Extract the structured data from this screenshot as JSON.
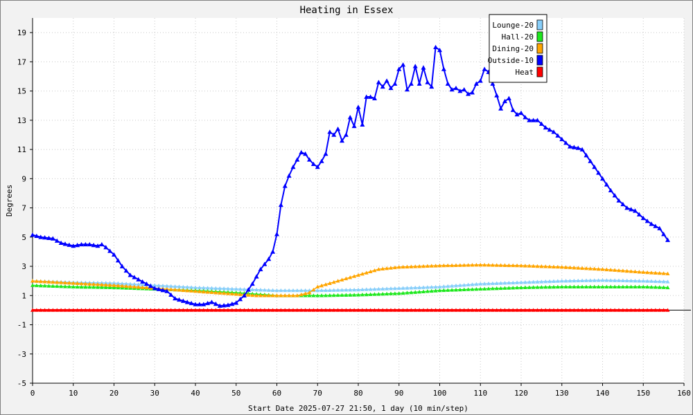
{
  "chart_data": {
    "type": "line",
    "title": "Heating in Essex",
    "xlabel": "Start Date 2025-07-27 21:50, 1 day (10 min/step)",
    "ylabel": "Degrees",
    "xlim": [
      0,
      160
    ],
    "ylim": [
      -5,
      20
    ],
    "x_ticks": [
      0,
      10,
      20,
      30,
      40,
      50,
      60,
      70,
      80,
      90,
      100,
      110,
      120,
      130,
      140,
      150,
      160
    ],
    "y_ticks": [
      -5,
      -3,
      -1,
      1,
      3,
      5,
      7,
      9,
      11,
      13,
      15,
      17,
      19
    ],
    "grid": true,
    "legend_position": "top-right",
    "series": [
      {
        "name": "Lounge-20",
        "color": "#87cefa",
        "points": [
          [
            0,
            2.0
          ],
          [
            10,
            1.9
          ],
          [
            20,
            1.85
          ],
          [
            30,
            1.7
          ],
          [
            40,
            1.55
          ],
          [
            50,
            1.45
          ],
          [
            55,
            1.4
          ],
          [
            60,
            1.35
          ],
          [
            70,
            1.35
          ],
          [
            80,
            1.4
          ],
          [
            90,
            1.5
          ],
          [
            100,
            1.6
          ],
          [
            110,
            1.8
          ],
          [
            120,
            1.9
          ],
          [
            130,
            2.0
          ],
          [
            140,
            2.05
          ],
          [
            150,
            2.0
          ],
          [
            156,
            1.95
          ]
        ]
      },
      {
        "name": "Hall-20",
        "color": "#1ee81e",
        "points": [
          [
            0,
            1.7
          ],
          [
            10,
            1.6
          ],
          [
            20,
            1.55
          ],
          [
            30,
            1.45
          ],
          [
            40,
            1.35
          ],
          [
            50,
            1.2
          ],
          [
            55,
            1.1
          ],
          [
            60,
            1.0
          ],
          [
            70,
            1.0
          ],
          [
            80,
            1.05
          ],
          [
            90,
            1.15
          ],
          [
            100,
            1.35
          ],
          [
            110,
            1.45
          ],
          [
            120,
            1.55
          ],
          [
            130,
            1.6
          ],
          [
            140,
            1.6
          ],
          [
            150,
            1.6
          ],
          [
            156,
            1.55
          ]
        ]
      },
      {
        "name": "Dining-20",
        "color": "#ffa500",
        "points": [
          [
            0,
            2.0
          ],
          [
            10,
            1.85
          ],
          [
            20,
            1.7
          ],
          [
            30,
            1.5
          ],
          [
            40,
            1.3
          ],
          [
            50,
            1.1
          ],
          [
            55,
            1.0
          ],
          [
            60,
            1.0
          ],
          [
            65,
            1.0
          ],
          [
            68,
            1.2
          ],
          [
            70,
            1.6
          ],
          [
            75,
            2.0
          ],
          [
            80,
            2.4
          ],
          [
            85,
            2.8
          ],
          [
            90,
            2.95
          ],
          [
            100,
            3.05
          ],
          [
            110,
            3.1
          ],
          [
            120,
            3.05
          ],
          [
            130,
            2.95
          ],
          [
            140,
            2.8
          ],
          [
            150,
            2.6
          ],
          [
            156,
            2.5
          ]
        ]
      },
      {
        "name": "Outside-10",
        "color": "#0000ff",
        "points": [
          [
            0,
            5.15
          ],
          [
            2,
            5.0
          ],
          [
            5,
            4.9
          ],
          [
            7,
            4.6
          ],
          [
            10,
            4.4
          ],
          [
            12,
            4.5
          ],
          [
            14,
            4.5
          ],
          [
            16,
            4.4
          ],
          [
            17,
            4.5
          ],
          [
            18,
            4.3
          ],
          [
            20,
            3.8
          ],
          [
            22,
            3.0
          ],
          [
            24,
            2.4
          ],
          [
            26,
            2.1
          ],
          [
            28,
            1.8
          ],
          [
            30,
            1.5
          ],
          [
            33,
            1.3
          ],
          [
            35,
            0.8
          ],
          [
            38,
            0.55
          ],
          [
            40,
            0.4
          ],
          [
            42,
            0.4
          ],
          [
            44,
            0.55
          ],
          [
            46,
            0.3
          ],
          [
            48,
            0.35
          ],
          [
            50,
            0.5
          ],
          [
            52,
            1.0
          ],
          [
            54,
            1.8
          ],
          [
            56,
            2.8
          ],
          [
            58,
            3.5
          ],
          [
            59,
            4.0
          ],
          [
            60,
            5.2
          ],
          [
            61,
            7.2
          ],
          [
            62,
            8.5
          ],
          [
            63,
            9.2
          ],
          [
            64,
            9.8
          ],
          [
            65,
            10.3
          ],
          [
            66,
            10.8
          ],
          [
            67,
            10.7
          ],
          [
            68,
            10.3
          ],
          [
            69,
            10.0
          ],
          [
            70,
            9.8
          ],
          [
            71,
            10.2
          ],
          [
            72,
            10.7
          ],
          [
            73,
            12.2
          ],
          [
            74,
            12.0
          ],
          [
            75,
            12.4
          ],
          [
            76,
            11.6
          ],
          [
            77,
            12.0
          ],
          [
            78,
            13.2
          ],
          [
            79,
            12.6
          ],
          [
            80,
            13.9
          ],
          [
            81,
            12.7
          ],
          [
            82,
            14.6
          ],
          [
            83,
            14.6
          ],
          [
            84,
            14.5
          ],
          [
            85,
            15.6
          ],
          [
            86,
            15.3
          ],
          [
            87,
            15.7
          ],
          [
            88,
            15.2
          ],
          [
            89,
            15.5
          ],
          [
            90,
            16.5
          ],
          [
            91,
            16.8
          ],
          [
            92,
            15.1
          ],
          [
            93,
            15.5
          ],
          [
            94,
            16.7
          ],
          [
            95,
            15.5
          ],
          [
            96,
            16.6
          ],
          [
            97,
            15.6
          ],
          [
            98,
            15.3
          ],
          [
            99,
            18.0
          ],
          [
            100,
            17.8
          ],
          [
            101,
            16.5
          ],
          [
            102,
            15.5
          ],
          [
            103,
            15.1
          ],
          [
            104,
            15.2
          ],
          [
            105,
            15.0
          ],
          [
            106,
            15.1
          ],
          [
            107,
            14.8
          ],
          [
            108,
            14.9
          ],
          [
            109,
            15.5
          ],
          [
            110,
            15.7
          ],
          [
            111,
            16.5
          ],
          [
            112,
            16.3
          ],
          [
            113,
            15.5
          ],
          [
            114,
            14.7
          ],
          [
            115,
            13.8
          ],
          [
            116,
            14.3
          ],
          [
            117,
            14.5
          ],
          [
            118,
            13.7
          ],
          [
            119,
            13.4
          ],
          [
            120,
            13.5
          ],
          [
            121,
            13.2
          ],
          [
            122,
            13.0
          ],
          [
            124,
            13.0
          ],
          [
            126,
            12.5
          ],
          [
            128,
            12.2
          ],
          [
            130,
            11.7
          ],
          [
            132,
            11.2
          ],
          [
            134,
            11.1
          ],
          [
            135,
            11.0
          ],
          [
            136,
            10.6
          ],
          [
            138,
            9.8
          ],
          [
            140,
            9.0
          ],
          [
            142,
            8.2
          ],
          [
            144,
            7.5
          ],
          [
            146,
            7.0
          ],
          [
            148,
            6.8
          ],
          [
            150,
            6.3
          ],
          [
            152,
            5.9
          ],
          [
            154,
            5.6
          ],
          [
            156,
            4.8
          ]
        ]
      },
      {
        "name": "Heat",
        "color": "#ff0000",
        "points": [
          [
            0,
            0.0
          ],
          [
            156,
            0.0
          ]
        ]
      }
    ]
  }
}
